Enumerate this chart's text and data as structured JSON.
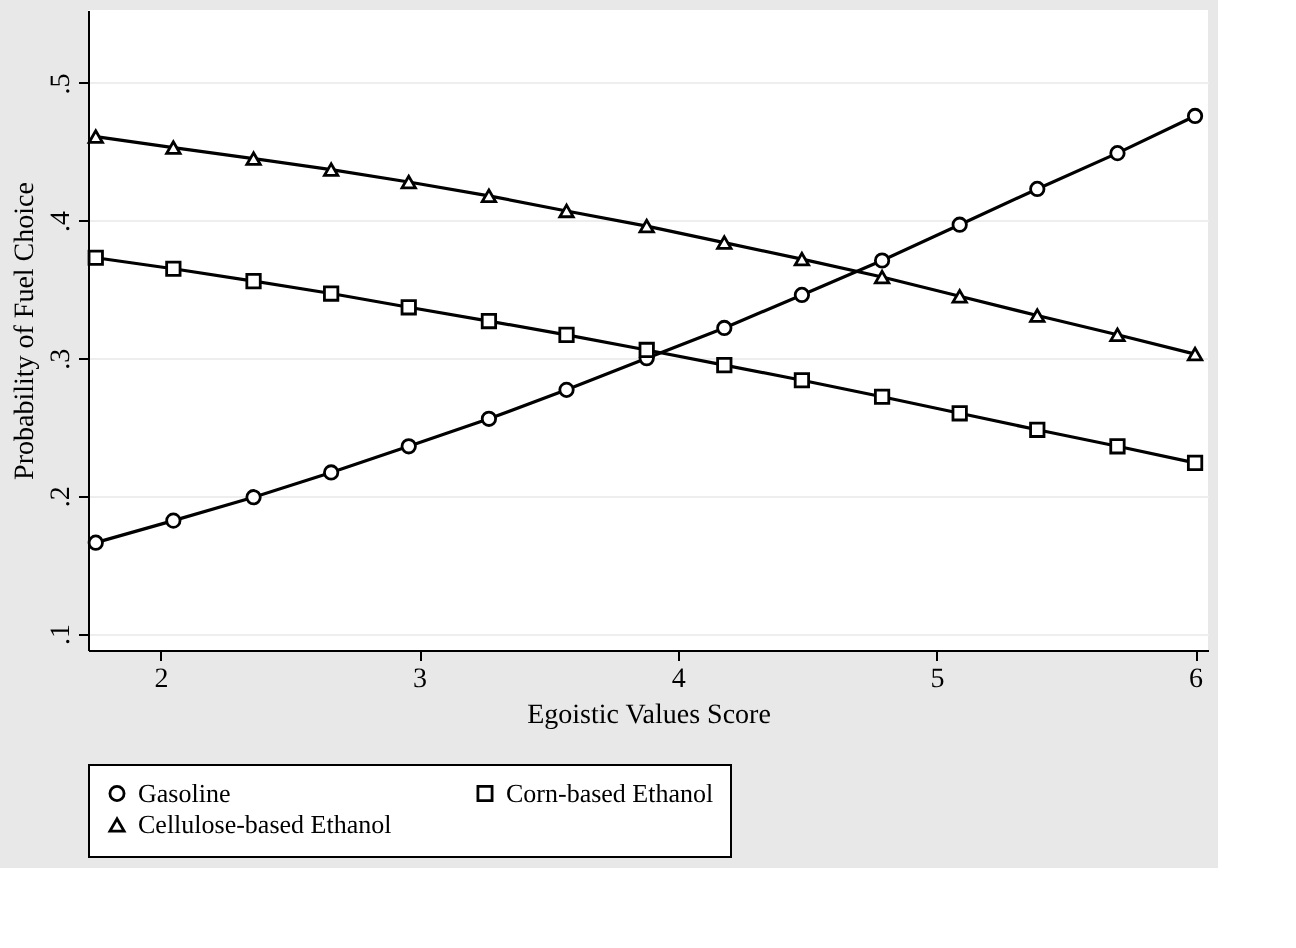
{
  "chart_data": {
    "type": "line",
    "xlabel": "Egoistic Values Score",
    "ylabel": "Probability of Fuel Choice",
    "x": [
      1.75,
      2.05,
      2.36,
      2.66,
      2.96,
      3.27,
      3.57,
      3.88,
      4.18,
      4.48,
      4.79,
      5.09,
      5.39,
      5.7,
      6.0
    ],
    "series": [
      {
        "name": "Gasoline",
        "color": "#000000",
        "marker": "circle",
        "values": [
          0.166,
          0.182,
          0.199,
          0.217,
          0.236,
          0.256,
          0.277,
          0.3,
          0.322,
          0.346,
          0.371,
          0.397,
          0.423,
          0.449,
          0.476
        ]
      },
      {
        "name": "Corn-based Ethanol",
        "color": "#000000",
        "marker": "square",
        "values": [
          0.373,
          0.365,
          0.356,
          0.347,
          0.337,
          0.327,
          0.317,
          0.306,
          0.295,
          0.284,
          0.272,
          0.26,
          0.248,
          0.236,
          0.224
        ]
      },
      {
        "name": "Cellulose-based Ethanol",
        "color": "#000000",
        "marker": "triangle",
        "values": [
          0.461,
          0.453,
          0.445,
          0.437,
          0.428,
          0.418,
          0.407,
          0.396,
          0.384,
          0.372,
          0.359,
          0.345,
          0.331,
          0.317,
          0.303
        ]
      }
    ],
    "xlim": [
      1.72,
      6.05
    ],
    "xticks": [
      2,
      3,
      4,
      5,
      6
    ],
    "ylim": [
      0.088,
      0.553
    ],
    "yticks": [
      {
        "value": 0.1,
        "label": ".1"
      },
      {
        "value": 0.2,
        "label": ".2"
      },
      {
        "value": 0.3,
        "label": ".3"
      },
      {
        "value": 0.4,
        "label": ".4"
      },
      {
        "value": 0.5,
        "label": ".5"
      }
    ],
    "grid": "y",
    "legend": "bottom",
    "line_style": "solid"
  }
}
